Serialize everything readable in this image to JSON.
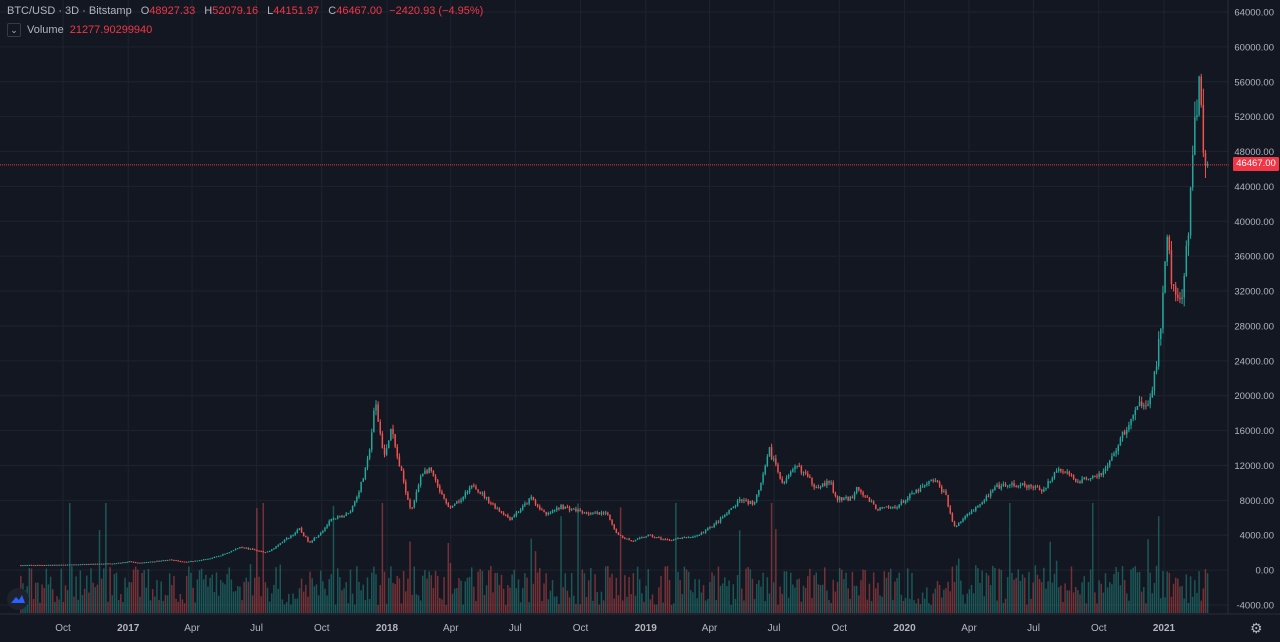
{
  "legend": {
    "symbol": "BTC/USD · 3D · Bitstamp",
    "open_label": "O",
    "open": "48927.33",
    "high_label": "H",
    "high": "52079.16",
    "low_label": "L",
    "low": "44151.97",
    "close_label": "C",
    "close": "46467.00",
    "change": "−2420.93 (−4.95%)",
    "volume_label": "Volume",
    "volume_value": "21277.90299940",
    "collapse_icon": "chevron-down-icon"
  },
  "current_price_badge": "46467.00",
  "colors": {
    "up": "#26a69a",
    "down": "#ef5350",
    "background": "#131722",
    "price_line": "#f23645"
  },
  "chart_data": {
    "type": "candlestick",
    "symbol": "BTC/USD",
    "interval": "3D",
    "exchange": "Bitstamp",
    "price_axis": {
      "range": [
        -4000,
        64000
      ],
      "ticks": [
        "64000.00",
        "60000.00",
        "56000.00",
        "52000.00",
        "48000.00",
        "44000.00",
        "40000.00",
        "36000.00",
        "32000.00",
        "28000.00",
        "24000.00",
        "20000.00",
        "16000.00",
        "12000.00",
        "8000.00",
        "4000.00",
        "0.00",
        "-4000.00"
      ],
      "current_price": 46467.0
    },
    "time_axis": {
      "range": [
        "2016-08-01",
        "2021-03-01"
      ],
      "ticks": [
        {
          "label": "Oct",
          "date": "2016-10-01"
        },
        {
          "label": "2017",
          "date": "2017-01-01"
        },
        {
          "label": "Apr",
          "date": "2017-04-01"
        },
        {
          "label": "Jul",
          "date": "2017-07-01"
        },
        {
          "label": "Oct",
          "date": "2017-10-01"
        },
        {
          "label": "2018",
          "date": "2018-01-01"
        },
        {
          "label": "Apr",
          "date": "2018-04-01"
        },
        {
          "label": "Jul",
          "date": "2018-07-01"
        },
        {
          "label": "Oct",
          "date": "2018-10-01"
        },
        {
          "label": "2019",
          "date": "2019-01-01"
        },
        {
          "label": "Apr",
          "date": "2019-04-01"
        },
        {
          "label": "Jul",
          "date": "2019-07-01"
        },
        {
          "label": "Oct",
          "date": "2019-10-01"
        },
        {
          "label": "2020",
          "date": "2020-01-01"
        },
        {
          "label": "Apr",
          "date": "2020-04-01"
        },
        {
          "label": "Jul",
          "date": "2020-07-01"
        },
        {
          "label": "Oct",
          "date": "2020-10-01"
        },
        {
          "label": "2021",
          "date": "2021-01-01"
        }
      ]
    },
    "price_path": [
      [
        "2016-08-01",
        570
      ],
      [
        "2016-10-01",
        610
      ],
      [
        "2016-12-15",
        780
      ],
      [
        "2017-01-05",
        1000
      ],
      [
        "2017-01-15",
        820
      ],
      [
        "2017-03-01",
        1200
      ],
      [
        "2017-03-25",
        950
      ],
      [
        "2017-05-01",
        1400
      ],
      [
        "2017-06-10",
        2700
      ],
      [
        "2017-07-15",
        2000
      ],
      [
        "2017-08-10",
        3400
      ],
      [
        "2017-09-01",
        4700
      ],
      [
        "2017-09-15",
        3200
      ],
      [
        "2017-10-15",
        5700
      ],
      [
        "2017-11-10",
        6500
      ],
      [
        "2017-12-05",
        12000
      ],
      [
        "2017-12-17",
        19400
      ],
      [
        "2017-12-30",
        13000
      ],
      [
        "2018-01-08",
        16500
      ],
      [
        "2018-01-25",
        10500
      ],
      [
        "2018-02-06",
        6900
      ],
      [
        "2018-02-20",
        11200
      ],
      [
        "2018-03-05",
        11500
      ],
      [
        "2018-04-01",
        6900
      ],
      [
        "2018-05-05",
        9800
      ],
      [
        "2018-06-25",
        5900
      ],
      [
        "2018-07-25",
        8300
      ],
      [
        "2018-08-15",
        6300
      ],
      [
        "2018-09-05",
        7300
      ],
      [
        "2018-10-15",
        6500
      ],
      [
        "2018-11-10",
        6400
      ],
      [
        "2018-11-25",
        4000
      ],
      [
        "2018-12-15",
        3300
      ],
      [
        "2019-01-05",
        4000
      ],
      [
        "2019-02-01",
        3450
      ],
      [
        "2019-03-15",
        3900
      ],
      [
        "2019-04-05",
        5000
      ],
      [
        "2019-05-15",
        8000
      ],
      [
        "2019-06-05",
        7700
      ],
      [
        "2019-06-26",
        13800
      ],
      [
        "2019-07-15",
        10000
      ],
      [
        "2019-08-05",
        12000
      ],
      [
        "2019-08-30",
        9600
      ],
      [
        "2019-09-20",
        10100
      ],
      [
        "2019-09-28",
        8100
      ],
      [
        "2019-10-20",
        8200
      ],
      [
        "2019-10-27",
        9700
      ],
      [
        "2019-11-25",
        7000
      ],
      [
        "2019-12-20",
        7200
      ],
      [
        "2020-01-15",
        8800
      ],
      [
        "2020-02-13",
        10400
      ],
      [
        "2020-03-01",
        8600
      ],
      [
        "2020-03-13",
        4900
      ],
      [
        "2020-04-01",
        6500
      ],
      [
        "2020-05-10",
        9500
      ],
      [
        "2020-06-10",
        9800
      ],
      [
        "2020-07-15",
        9200
      ],
      [
        "2020-08-05",
        11700
      ],
      [
        "2020-09-05",
        10200
      ],
      [
        "2020-10-10",
        11300
      ],
      [
        "2020-11-05",
        15500
      ],
      [
        "2020-12-01",
        19300
      ],
      [
        "2020-12-15",
        19500
      ],
      [
        "2020-12-27",
        26500
      ],
      [
        "2021-01-08",
        40000
      ],
      [
        "2021-01-13",
        33000
      ],
      [
        "2021-01-27",
        30500
      ],
      [
        "2021-02-05",
        38000
      ],
      [
        "2021-02-12",
        47800
      ],
      [
        "2021-02-21",
        57000
      ],
      [
        "2021-02-27",
        48900
      ],
      [
        "2021-03-02",
        46467
      ]
    ],
    "volume_scale": "relative"
  }
}
